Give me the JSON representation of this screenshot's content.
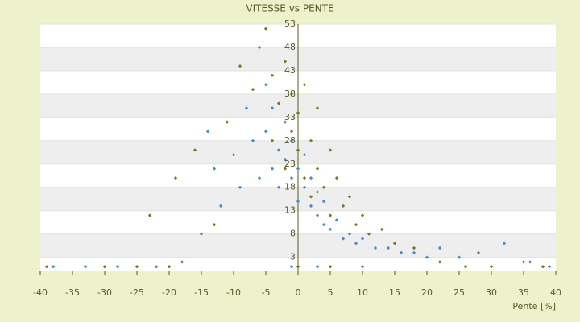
{
  "chart_data": {
    "type": "scatter",
    "title": "VITESSE vs PENTE",
    "x_label": "Pente [%]",
    "xlim": [
      -40,
      40
    ],
    "xticks": [
      -40,
      -35,
      -30,
      -25,
      -20,
      -15,
      -10,
      -5,
      0,
      5,
      10,
      15,
      20,
      25,
      30,
      35,
      40
    ],
    "ylim": [
      0,
      53
    ],
    "yticks": [
      53,
      48,
      43,
      38,
      33,
      28,
      23,
      18,
      13,
      8,
      3
    ],
    "grid": true,
    "series": [
      {
        "color": "#3a8fd8",
        "x": [
          -38,
          -33,
          -28,
          -22,
          -18,
          -15,
          -14,
          -13,
          -12,
          -10,
          -9,
          -8,
          -7,
          -6,
          -5,
          -5,
          -4,
          -4,
          -3,
          -3,
          -2,
          -2,
          -1,
          -1,
          0,
          0,
          1,
          1,
          2,
          2,
          3,
          3,
          4,
          4,
          5,
          6,
          7,
          8,
          9,
          10,
          12,
          14,
          16,
          18,
          20,
          22,
          25,
          28,
          32,
          36,
          39,
          3,
          -1,
          10
        ],
        "values": [
          1,
          1,
          1,
          1,
          2,
          8,
          30,
          22,
          14,
          25,
          18,
          35,
          28,
          20,
          40,
          30,
          22,
          35,
          26,
          18,
          32,
          24,
          20,
          28,
          22,
          15,
          18,
          25,
          14,
          20,
          12,
          17,
          10,
          15,
          9,
          11,
          7,
          8,
          6,
          7,
          5,
          5,
          4,
          4,
          3,
          5,
          3,
          4,
          6,
          2,
          1,
          1,
          1,
          1
        ]
      },
      {
        "color": "#7a7a10",
        "x": [
          -39,
          -30,
          -25,
          -20,
          -23,
          -19,
          -16,
          -13,
          -11,
          -9,
          -7,
          -6,
          -5,
          -4,
          -4,
          -3,
          -2,
          -2,
          -1,
          -1,
          0,
          0,
          1,
          1,
          2,
          2,
          3,
          3,
          4,
          5,
          5,
          6,
          7,
          8,
          9,
          10,
          11,
          13,
          15,
          18,
          22,
          26,
          30,
          35,
          38,
          0,
          5
        ],
        "values": [
          1,
          1,
          1,
          1,
          12,
          20,
          26,
          10,
          32,
          44,
          39,
          48,
          52,
          42,
          28,
          36,
          45,
          22,
          30,
          38,
          26,
          34,
          40,
          20,
          28,
          16,
          22,
          35,
          18,
          26,
          12,
          20,
          14,
          16,
          10,
          12,
          8,
          9,
          6,
          5,
          2,
          1,
          1,
          2,
          1,
          1,
          1
        ]
      }
    ]
  }
}
